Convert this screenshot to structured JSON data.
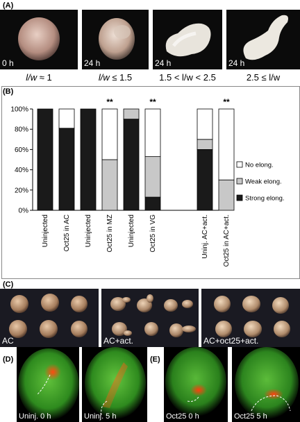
{
  "panels": {
    "a": {
      "label": "(A)",
      "photos": [
        {
          "time": "0 h",
          "ratio_pre": "l/w",
          "ratio_post": " ≈ 1"
        },
        {
          "time": "24 h",
          "ratio_pre": "l/w",
          "ratio_post": " ≤ 1.5"
        },
        {
          "time": "24 h",
          "ratio_pre": "1.5 < l/w < 2.5",
          "ratio_post": ""
        },
        {
          "time": "24 h",
          "ratio_pre": "2.5 ≤ l/w",
          "ratio_post": ""
        }
      ]
    },
    "b": {
      "label": "(B)"
    },
    "c": {
      "label": "(C)",
      "photos": [
        "AC",
        "AC+act.",
        "AC+oct25+act."
      ]
    },
    "d": {
      "label": "(D)",
      "photos": [
        "Uninj. 0 h",
        "Uninj. 5 h"
      ]
    },
    "e": {
      "label": "(E)",
      "photos": [
        "Oct25 0 h",
        "Oct25 5 h"
      ]
    }
  },
  "chart_data": {
    "type": "bar",
    "stacked": true,
    "categories": [
      "Uninjected",
      "Oct25 in AC",
      "Uninjected",
      "Oct25 in MZ",
      "Uninjected",
      "Oct25 in VG",
      "Uninj. AC+act.",
      "Oct25 in AC+act."
    ],
    "series": [
      {
        "name": "Strong elong.",
        "color": "#1a1a1a",
        "values": [
          100,
          81,
          100,
          0,
          90,
          13,
          60,
          0
        ]
      },
      {
        "name": "Weak elong.",
        "color": "#c8c8c8",
        "values": [
          0,
          0,
          0,
          50,
          10,
          40,
          10,
          30
        ]
      },
      {
        "name": "No elong.",
        "color": "#ffffff",
        "values": [
          0,
          19,
          0,
          50,
          0,
          47,
          30,
          70
        ]
      }
    ],
    "significance": [
      "",
      "",
      "",
      "**",
      "",
      "**",
      "",
      "**"
    ],
    "yticks": [
      "0%",
      "20%",
      "40%",
      "60%",
      "80%",
      "100%"
    ],
    "ylim": [
      0,
      100
    ],
    "legend_position": "right",
    "legend_order": [
      "No elong.",
      "Weak elong.",
      "Strong elong."
    ],
    "grid": false
  }
}
